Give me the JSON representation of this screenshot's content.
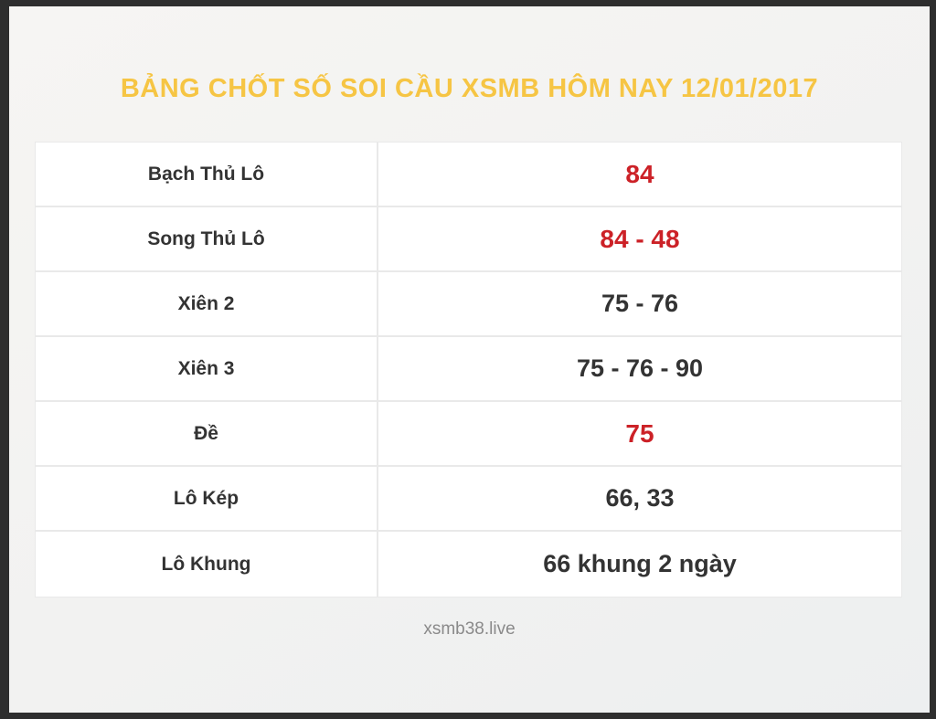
{
  "header": {
    "title": "BẢNG CHỐT SỐ SOI CẦU XSMB HÔM NAY 12/01/2017"
  },
  "table": {
    "rows": [
      {
        "label": "Bạch Thủ Lô",
        "value": "84",
        "highlight": true
      },
      {
        "label": "Song Thủ Lô",
        "value": "84 - 48",
        "highlight": true
      },
      {
        "label": "Xiên 2",
        "value": "75 - 76",
        "highlight": false
      },
      {
        "label": "Xiên 3",
        "value": "75 - 76 - 90",
        "highlight": false
      },
      {
        "label": "Đề",
        "value": "75",
        "highlight": true
      },
      {
        "label": "Lô Kép",
        "value": "66, 33",
        "highlight": false
      },
      {
        "label": "Lô Khung",
        "value": "66 khung 2 ngày",
        "highlight": false
      }
    ]
  },
  "footer": {
    "site": "xsmb38.live"
  },
  "colors": {
    "accent_yellow": "#f6c544",
    "accent_red": "#cc2127",
    "text_dark": "#333333",
    "text_gray": "#8a8a8a",
    "frame_border": "#2e2e2e",
    "table_border": "#e9e9e9"
  }
}
